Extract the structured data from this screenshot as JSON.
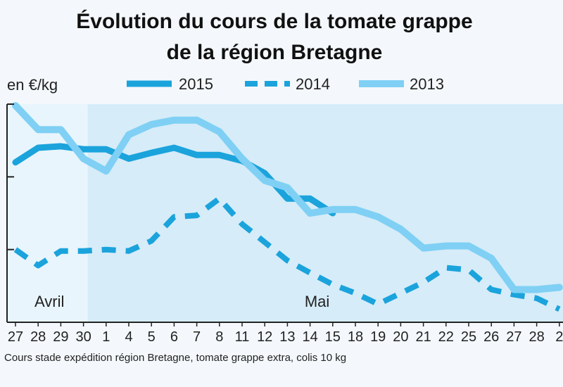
{
  "colors": {
    "series_2015": "#1ba3dc",
    "series_2014": "#1ba3dc",
    "series_2013": "#7fd0f4",
    "plot_bg_april": "#e8f5fc",
    "plot_bg_may": "#d6ecf8",
    "axis": "#222222"
  },
  "chart_data": {
    "type": "line",
    "title": [
      "Évolution du cours de la tomate grappe",
      "de la région Bretagne"
    ],
    "ylabel": "en €/kg",
    "yticks_count": 3,
    "ylim": [
      0,
      3
    ],
    "grid": false,
    "legend_position": "top",
    "months": [
      {
        "label": "Avril",
        "start_index": 0
      },
      {
        "label": "Mai",
        "start_index": 4
      }
    ],
    "categories": [
      "27",
      "28",
      "29",
      "30",
      "1",
      "4",
      "5",
      "6",
      "7",
      "8",
      "11",
      "12",
      "13",
      "14",
      "15",
      "18",
      "19",
      "20",
      "21",
      "22",
      "25",
      "26",
      "27",
      "28",
      "2"
    ],
    "series": [
      {
        "name": "2015",
        "style": "solid",
        "values": [
          2.2,
          2.4,
          2.42,
          2.38,
          2.38,
          2.25,
          2.33,
          2.4,
          2.3,
          2.3,
          2.22,
          2.05,
          1.7,
          1.7,
          1.5,
          null,
          null,
          null,
          null,
          null,
          null,
          null,
          null,
          null,
          null
        ]
      },
      {
        "name": "2014",
        "style": "dashed",
        "values": [
          1.0,
          0.78,
          0.98,
          0.98,
          1.0,
          0.98,
          1.12,
          1.45,
          1.47,
          1.7,
          1.35,
          1.1,
          0.85,
          0.68,
          0.52,
          0.4,
          0.25,
          0.4,
          0.55,
          0.75,
          0.72,
          0.45,
          0.38,
          0.33,
          0.18
        ]
      },
      {
        "name": "2013",
        "style": "solid-light",
        "values": [
          2.98,
          2.65,
          2.65,
          2.25,
          2.08,
          2.58,
          2.72,
          2.78,
          2.78,
          2.62,
          2.25,
          1.95,
          1.85,
          1.5,
          1.55,
          1.55,
          1.45,
          1.28,
          1.02,
          1.05,
          1.05,
          0.88,
          0.45,
          0.45,
          0.48
        ]
      }
    ],
    "source": "Cours stade expédition région Bretagne, tomate grappe extra, colis 10 kg"
  }
}
